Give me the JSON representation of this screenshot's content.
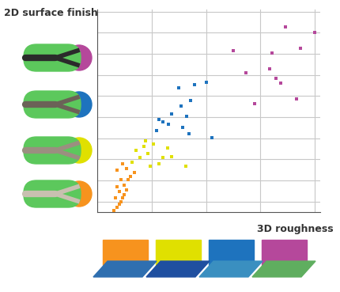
{
  "chart_data": {
    "type": "scatter",
    "x_label": "3D roughness",
    "y_label": "2D surface finish",
    "xlim": [
      0,
      4.1
    ],
    "xticks": [
      1,
      2,
      3,
      4
    ],
    "ylim": [
      0.5,
      10.1
    ],
    "yticks": [
      1,
      2,
      3,
      4,
      5,
      6,
      7,
      8,
      9,
      10
    ],
    "grid": true,
    "tick_labels": false,
    "marker": "square",
    "series": [
      {
        "color": "#f7931e",
        "x": [
          0.31,
          0.36,
          0.4,
          0.43,
          0.34,
          0.46,
          0.5,
          0.4,
          0.54,
          0.37,
          0.5,
          0.57,
          0.43,
          0.61,
          0.36,
          0.54,
          0.69,
          0.46
        ],
        "values": [
          0.59,
          0.74,
          0.89,
          1.0,
          1.19,
          1.19,
          1.34,
          1.49,
          1.56,
          1.71,
          1.79,
          2.02,
          2.02,
          2.17,
          2.5,
          2.58,
          2.39,
          2.77
        ]
      },
      {
        "color": "#e0e000",
        "x": [
          0.64,
          0.79,
          0.93,
          0.86,
          1.03,
          0.71,
          1.14,
          0.97,
          1.21,
          1.29,
          1.63,
          1.36,
          0.89
        ],
        "values": [
          2.88,
          3.07,
          3.26,
          3.63,
          3.74,
          3.44,
          2.77,
          2.69,
          3.07,
          3.52,
          2.69,
          3.14,
          3.89
        ]
      },
      {
        "color": "#1e73be",
        "x": [
          1.09,
          1.21,
          1.36,
          1.5,
          1.79,
          2.0,
          2.11,
          1.69,
          1.57,
          1.64,
          1.31,
          1.14,
          1.54,
          1.71
        ],
        "values": [
          4.38,
          4.76,
          5.14,
          6.38,
          6.53,
          6.64,
          4.01,
          4.2,
          4.5,
          5.02,
          4.65,
          4.87,
          5.51,
          5.77
        ]
      },
      {
        "color": "#b5489b",
        "x": [
          2.5,
          2.74,
          3.21,
          3.17,
          3.29,
          3.46,
          3.37,
          3.73,
          4.0,
          3.66,
          2.9
        ],
        "values": [
          8.14,
          7.09,
          8.03,
          7.28,
          6.83,
          9.27,
          6.6,
          8.26,
          9.0,
          5.85,
          5.62
        ]
      }
    ]
  }
}
